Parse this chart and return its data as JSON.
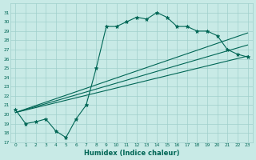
{
  "xlabel": "Humidex (Indice chaleur)",
  "background_color": "#c8eae6",
  "grid_color": "#a0d0cc",
  "line_color": "#006655",
  "hours": [
    0,
    1,
    2,
    3,
    4,
    5,
    6,
    7,
    8,
    9,
    10,
    11,
    12,
    13,
    14,
    15,
    16,
    17,
    18,
    19,
    20,
    21,
    22,
    23
  ],
  "series_main": [
    20.5,
    19.0,
    19.2,
    19.5,
    18.2,
    17.5,
    19.5,
    21.0,
    25.0,
    29.5,
    29.5,
    30.0,
    30.5,
    30.3,
    31.0,
    30.5,
    29.5,
    29.5,
    29.0,
    29.0,
    28.5,
    27.0,
    26.5,
    26.2
  ],
  "series_line1_x": [
    0,
    23
  ],
  "series_line1_y": [
    20.2,
    26.3
  ],
  "series_line2_x": [
    0,
    23
  ],
  "series_line2_y": [
    20.2,
    27.5
  ],
  "series_line3_x": [
    0,
    23
  ],
  "series_line3_y": [
    20.2,
    28.8
  ],
  "ylim_min": 17,
  "ylim_max": 32,
  "xlim_min": -0.5,
  "xlim_max": 23.5,
  "yticks": [
    17,
    18,
    19,
    20,
    21,
    22,
    23,
    24,
    25,
    26,
    27,
    28,
    29,
    30,
    31
  ],
  "xticks": [
    0,
    1,
    2,
    3,
    4,
    5,
    6,
    7,
    8,
    9,
    10,
    11,
    12,
    13,
    14,
    15,
    16,
    17,
    18,
    19,
    20,
    21,
    22,
    23
  ]
}
